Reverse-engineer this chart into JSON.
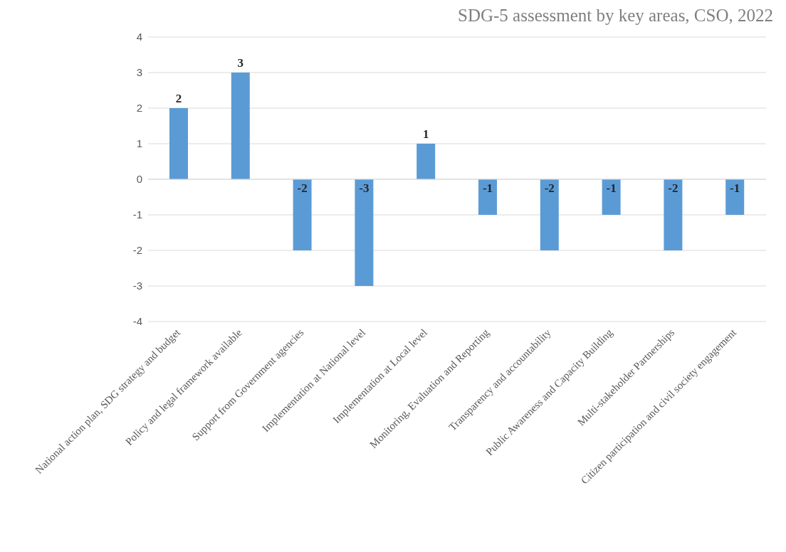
{
  "chart_data": {
    "type": "bar",
    "title": "SDG-5 assessment by key areas, CSO, 2022",
    "categories": [
      "National action plan, SDG strategy and budget",
      "Policy and legal framework available",
      "Support from Government agencies",
      "Implementation at National level",
      "Implementation at Local level",
      "Monitoring, Evaluation and Reporting",
      "Transparency and accountability",
      "Public Awareness and Capacity Building",
      "Multi-stakeholder Partnerships",
      "Citizen participation and  civil society engagement"
    ],
    "values": [
      2,
      3,
      -2,
      -3,
      1,
      -1,
      -2,
      -1,
      -2,
      -1
    ],
    "color": "#5b9bd5",
    "ylim": [
      -4,
      4
    ],
    "yticks": [
      -4,
      -3,
      -2,
      -1,
      0,
      1,
      2,
      3,
      4
    ],
    "grid": "y",
    "data_labels": true
  }
}
